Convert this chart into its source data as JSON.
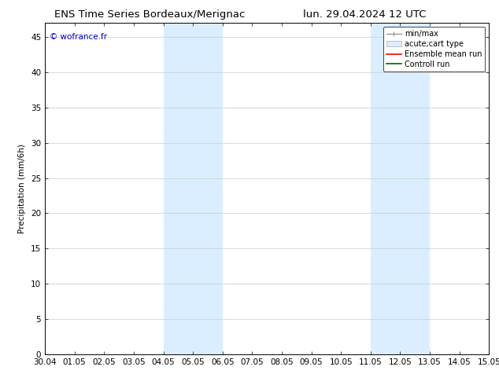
{
  "title_left": "ENS Time Series Bordeaux/Merignac",
  "title_right": "lun. 29.04.2024 12 UTC",
  "ylabel": "Precipitation (mm/6h)",
  "watermark": "© wofrance.fr",
  "watermark_color": "#0000cc",
  "ylim": [
    0,
    47
  ],
  "yticks": [
    0,
    5,
    10,
    15,
    20,
    25,
    30,
    35,
    40,
    45
  ],
  "xtick_labels": [
    "30.04",
    "01.05",
    "02.05",
    "03.05",
    "04.05",
    "05.05",
    "06.05",
    "07.05",
    "08.05",
    "09.05",
    "10.05",
    "11.05",
    "12.05",
    "13.05",
    "14.05",
    "15.05"
  ],
  "shaded_regions": [
    {
      "xstart": 4.0,
      "xend": 5.0,
      "color": "#daeeff"
    },
    {
      "xstart": 5.0,
      "xend": 6.0,
      "color": "#daeeff"
    },
    {
      "xstart": 11.0,
      "xend": 12.0,
      "color": "#daeeff"
    },
    {
      "xstart": 12.0,
      "xend": 13.0,
      "color": "#daeeff"
    }
  ],
  "legend_entries": [
    {
      "label": "min/max",
      "color": "#999999",
      "lw": 1.0,
      "type": "line_with_cap"
    },
    {
      "label": "acute;cart type",
      "color": "#daeeff",
      "edge_color": "#aaaaaa",
      "lw": 1.0,
      "type": "bar"
    },
    {
      "label": "Ensemble mean run",
      "color": "#ff0000",
      "lw": 1.2,
      "type": "line"
    },
    {
      "label": "Controll run",
      "color": "#006600",
      "lw": 1.2,
      "type": "line"
    }
  ],
  "bg_color": "#ffffff",
  "plot_bg_color": "#ffffff",
  "grid_color": "#cccccc",
  "tick_color": "#000000",
  "font_size": 7.5,
  "title_font_size": 9.5,
  "legend_font_size": 7.0
}
